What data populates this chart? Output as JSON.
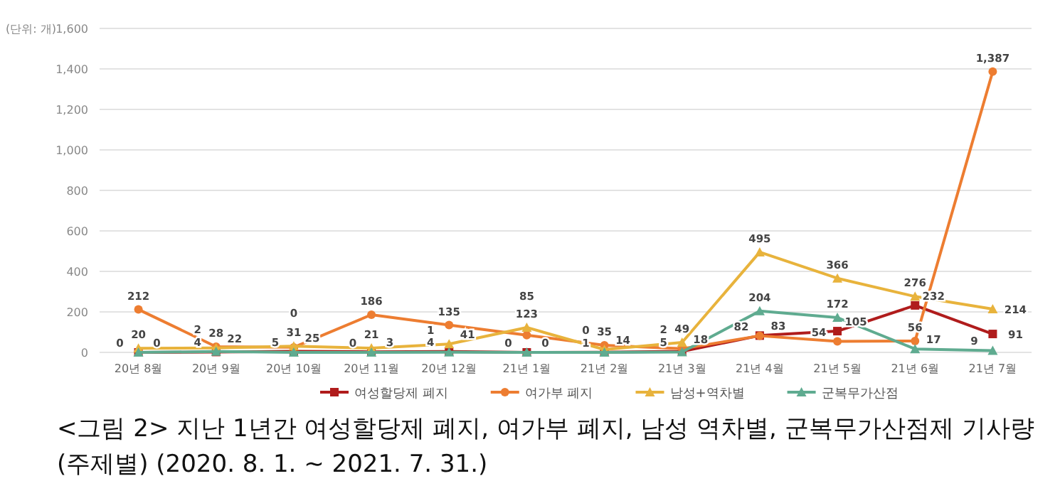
{
  "chart_data": {
    "type": "line",
    "ylabel": "(단위: 개)",
    "categories": [
      "20년 8월",
      "20년 9월",
      "20년 10월",
      "20년 11월",
      "20년 12월",
      "21년 1월",
      "21년 2월",
      "21년 3월",
      "21년 4월",
      "21년 5월",
      "21년 6월",
      "21년 7월"
    ],
    "series": [
      {
        "name": "여성할당제 폐지",
        "color": "#b01c1c",
        "marker": "square",
        "values": [
          0,
          2,
          5,
          3,
          4,
          0,
          1,
          5,
          83,
          105,
          232,
          91
        ],
        "value_labels": [
          "0",
          "2",
          "5",
          "3",
          "4",
          "0",
          "1",
          "5",
          "83",
          "105",
          "232",
          "91"
        ]
      },
      {
        "name": "여가부 폐지",
        "color": "#ed7d31",
        "marker": "circle",
        "values": [
          212,
          28,
          25,
          186,
          135,
          85,
          35,
          18,
          82,
          54,
          56,
          1387
        ],
        "value_labels": [
          "212",
          "28",
          "25",
          "186",
          "135",
          "85",
          "35",
          "18",
          "82",
          "54",
          "56",
          "1,387"
        ]
      },
      {
        "name": "남성+역차별",
        "color": "#e8b33c",
        "marker": "triangle",
        "values": [
          20,
          22,
          31,
          21,
          41,
          123,
          14,
          49,
          495,
          366,
          276,
          214
        ],
        "value_labels": [
          "20",
          "22",
          "31",
          "21",
          "41",
          "123",
          "14",
          "49",
          "495",
          "366",
          "276",
          "214"
        ]
      },
      {
        "name": "군복무가산점",
        "color": "#5fab90",
        "marker": "triangle",
        "values": [
          0,
          4,
          0,
          0,
          1,
          0,
          0,
          2,
          204,
          172,
          17,
          9
        ],
        "value_labels": [
          "0",
          "4",
          "0",
          "0",
          "1",
          "0",
          "0",
          "2",
          "204",
          "172",
          "17",
          "9"
        ]
      }
    ],
    "ylim": [
      0,
      1600
    ],
    "yticks": [
      {
        "value": 0,
        "label": "0"
      },
      {
        "value": 200,
        "label": "200"
      },
      {
        "value": 400,
        "label": "400"
      },
      {
        "value": 600,
        "label": "600"
      },
      {
        "value": 800,
        "label": "800"
      },
      {
        "value": 1000,
        "label": "1,000"
      },
      {
        "value": 1200,
        "label": "1,200"
      },
      {
        "value": 1400,
        "label": "1,400"
      },
      {
        "value": 1600,
        "label": "1,600"
      }
    ],
    "grid": "y",
    "legend": "bottom",
    "line_style": "solid",
    "annotations": [
      "<그림 2> 지난 1년간 여성할당제 폐지, 여가부 폐지, 남성 역차별, 군복무가산점제 기사량 (주제별) (2020. 8. 1. ~ 2021. 7. 31.)"
    ]
  }
}
